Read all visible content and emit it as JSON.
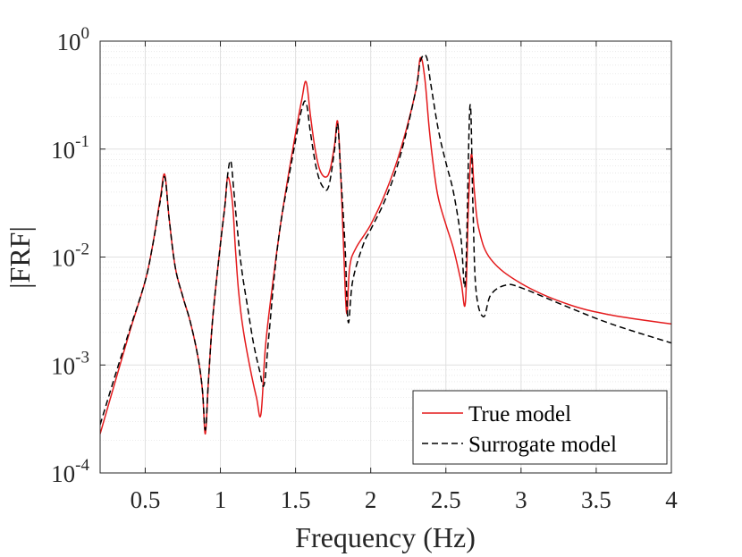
{
  "chart_data": {
    "type": "line",
    "title": "",
    "xlabel": "Frequency (Hz)",
    "ylabel": "|FRF|",
    "xlim": [
      0.2,
      4
    ],
    "ylim": [
      0.0001,
      1
    ],
    "yscale": "log",
    "grid": true,
    "legend_position": "bottom-right",
    "x_ticks": [
      {
        "value": 0.5,
        "label": "0.5"
      },
      {
        "value": 1,
        "label": "1"
      },
      {
        "value": 1.5,
        "label": "1.5"
      },
      {
        "value": 2,
        "label": "2"
      },
      {
        "value": 2.5,
        "label": "2.5"
      },
      {
        "value": 3,
        "label": "3"
      },
      {
        "value": 3.5,
        "label": "3.5"
      },
      {
        "value": 4,
        "label": "4"
      }
    ],
    "y_ticks": [
      {
        "value": 0.0001,
        "base": "10",
        "exp": "-4"
      },
      {
        "value": 0.001,
        "base": "10",
        "exp": "-3"
      },
      {
        "value": 0.01,
        "base": "10",
        "exp": "-2"
      },
      {
        "value": 0.1,
        "base": "10",
        "exp": "-1"
      },
      {
        "value": 1,
        "base": "10",
        "exp": "0"
      }
    ],
    "series": [
      {
        "name": "True model",
        "color": "#e41a1c",
        "dash": "solid",
        "x": [
          0.2,
          0.3,
          0.4,
          0.5,
          0.55,
          0.6,
          0.63,
          0.66,
          0.7,
          0.75,
          0.8,
          0.85,
          0.88,
          0.9,
          0.92,
          0.95,
          1.0,
          1.03,
          1.05,
          1.08,
          1.1,
          1.12,
          1.15,
          1.2,
          1.24,
          1.27,
          1.3,
          1.35,
          1.4,
          1.45,
          1.5,
          1.54,
          1.57,
          1.6,
          1.63,
          1.66,
          1.7,
          1.73,
          1.76,
          1.78,
          1.8,
          1.82,
          1.84,
          1.86,
          1.9,
          2.0,
          2.1,
          2.2,
          2.3,
          2.33,
          2.36,
          2.39,
          2.42,
          2.45,
          2.5,
          2.55,
          2.6,
          2.63,
          2.65,
          2.67,
          2.69,
          2.72,
          2.8,
          3.0,
          3.3,
          3.6,
          4.0
        ],
        "y": [
          0.00023,
          0.0007,
          0.0021,
          0.006,
          0.013,
          0.035,
          0.058,
          0.022,
          0.008,
          0.0043,
          0.0025,
          0.0012,
          0.0006,
          0.00023,
          0.0007,
          0.0028,
          0.013,
          0.03,
          0.055,
          0.032,
          0.012,
          0.005,
          0.0022,
          0.0009,
          0.0005,
          0.00035,
          0.0015,
          0.006,
          0.02,
          0.055,
          0.14,
          0.28,
          0.42,
          0.2,
          0.1,
          0.065,
          0.055,
          0.065,
          0.11,
          0.18,
          0.06,
          0.012,
          0.003,
          0.008,
          0.012,
          0.02,
          0.04,
          0.1,
          0.35,
          0.7,
          0.45,
          0.15,
          0.065,
          0.035,
          0.02,
          0.012,
          0.006,
          0.0038,
          0.03,
          0.09,
          0.04,
          0.018,
          0.0095,
          0.0057,
          0.0037,
          0.0029,
          0.0024
        ]
      },
      {
        "name": "Surrogate model",
        "color": "#000000",
        "dash": "dashed",
        "x": [
          0.2,
          0.3,
          0.4,
          0.5,
          0.55,
          0.6,
          0.63,
          0.66,
          0.7,
          0.75,
          0.8,
          0.85,
          0.88,
          0.9,
          0.92,
          0.95,
          1.0,
          1.03,
          1.05,
          1.07,
          1.09,
          1.11,
          1.14,
          1.18,
          1.22,
          1.26,
          1.29,
          1.32,
          1.36,
          1.4,
          1.45,
          1.5,
          1.54,
          1.57,
          1.6,
          1.64,
          1.68,
          1.72,
          1.76,
          1.78,
          1.8,
          1.83,
          1.85,
          1.88,
          1.95,
          2.0,
          2.1,
          2.2,
          2.3,
          2.33,
          2.37,
          2.4,
          2.45,
          2.5,
          2.55,
          2.6,
          2.63,
          2.66,
          2.68,
          2.7,
          2.75,
          2.8,
          2.9,
          3.0,
          3.3,
          3.6,
          4.0
        ],
        "y": [
          0.00028,
          0.0008,
          0.0022,
          0.006,
          0.013,
          0.033,
          0.055,
          0.022,
          0.008,
          0.0043,
          0.0025,
          0.0012,
          0.0006,
          0.00025,
          0.0007,
          0.0028,
          0.013,
          0.03,
          0.06,
          0.077,
          0.04,
          0.02,
          0.008,
          0.0035,
          0.0016,
          0.0009,
          0.00065,
          0.0017,
          0.007,
          0.02,
          0.05,
          0.12,
          0.23,
          0.27,
          0.14,
          0.065,
          0.045,
          0.045,
          0.1,
          0.17,
          0.06,
          0.012,
          0.0025,
          0.006,
          0.013,
          0.018,
          0.035,
          0.09,
          0.35,
          0.65,
          0.72,
          0.4,
          0.15,
          0.075,
          0.04,
          0.015,
          0.006,
          0.25,
          0.03,
          0.005,
          0.0028,
          0.0045,
          0.0055,
          0.0052,
          0.0035,
          0.0024,
          0.0016
        ]
      }
    ]
  }
}
